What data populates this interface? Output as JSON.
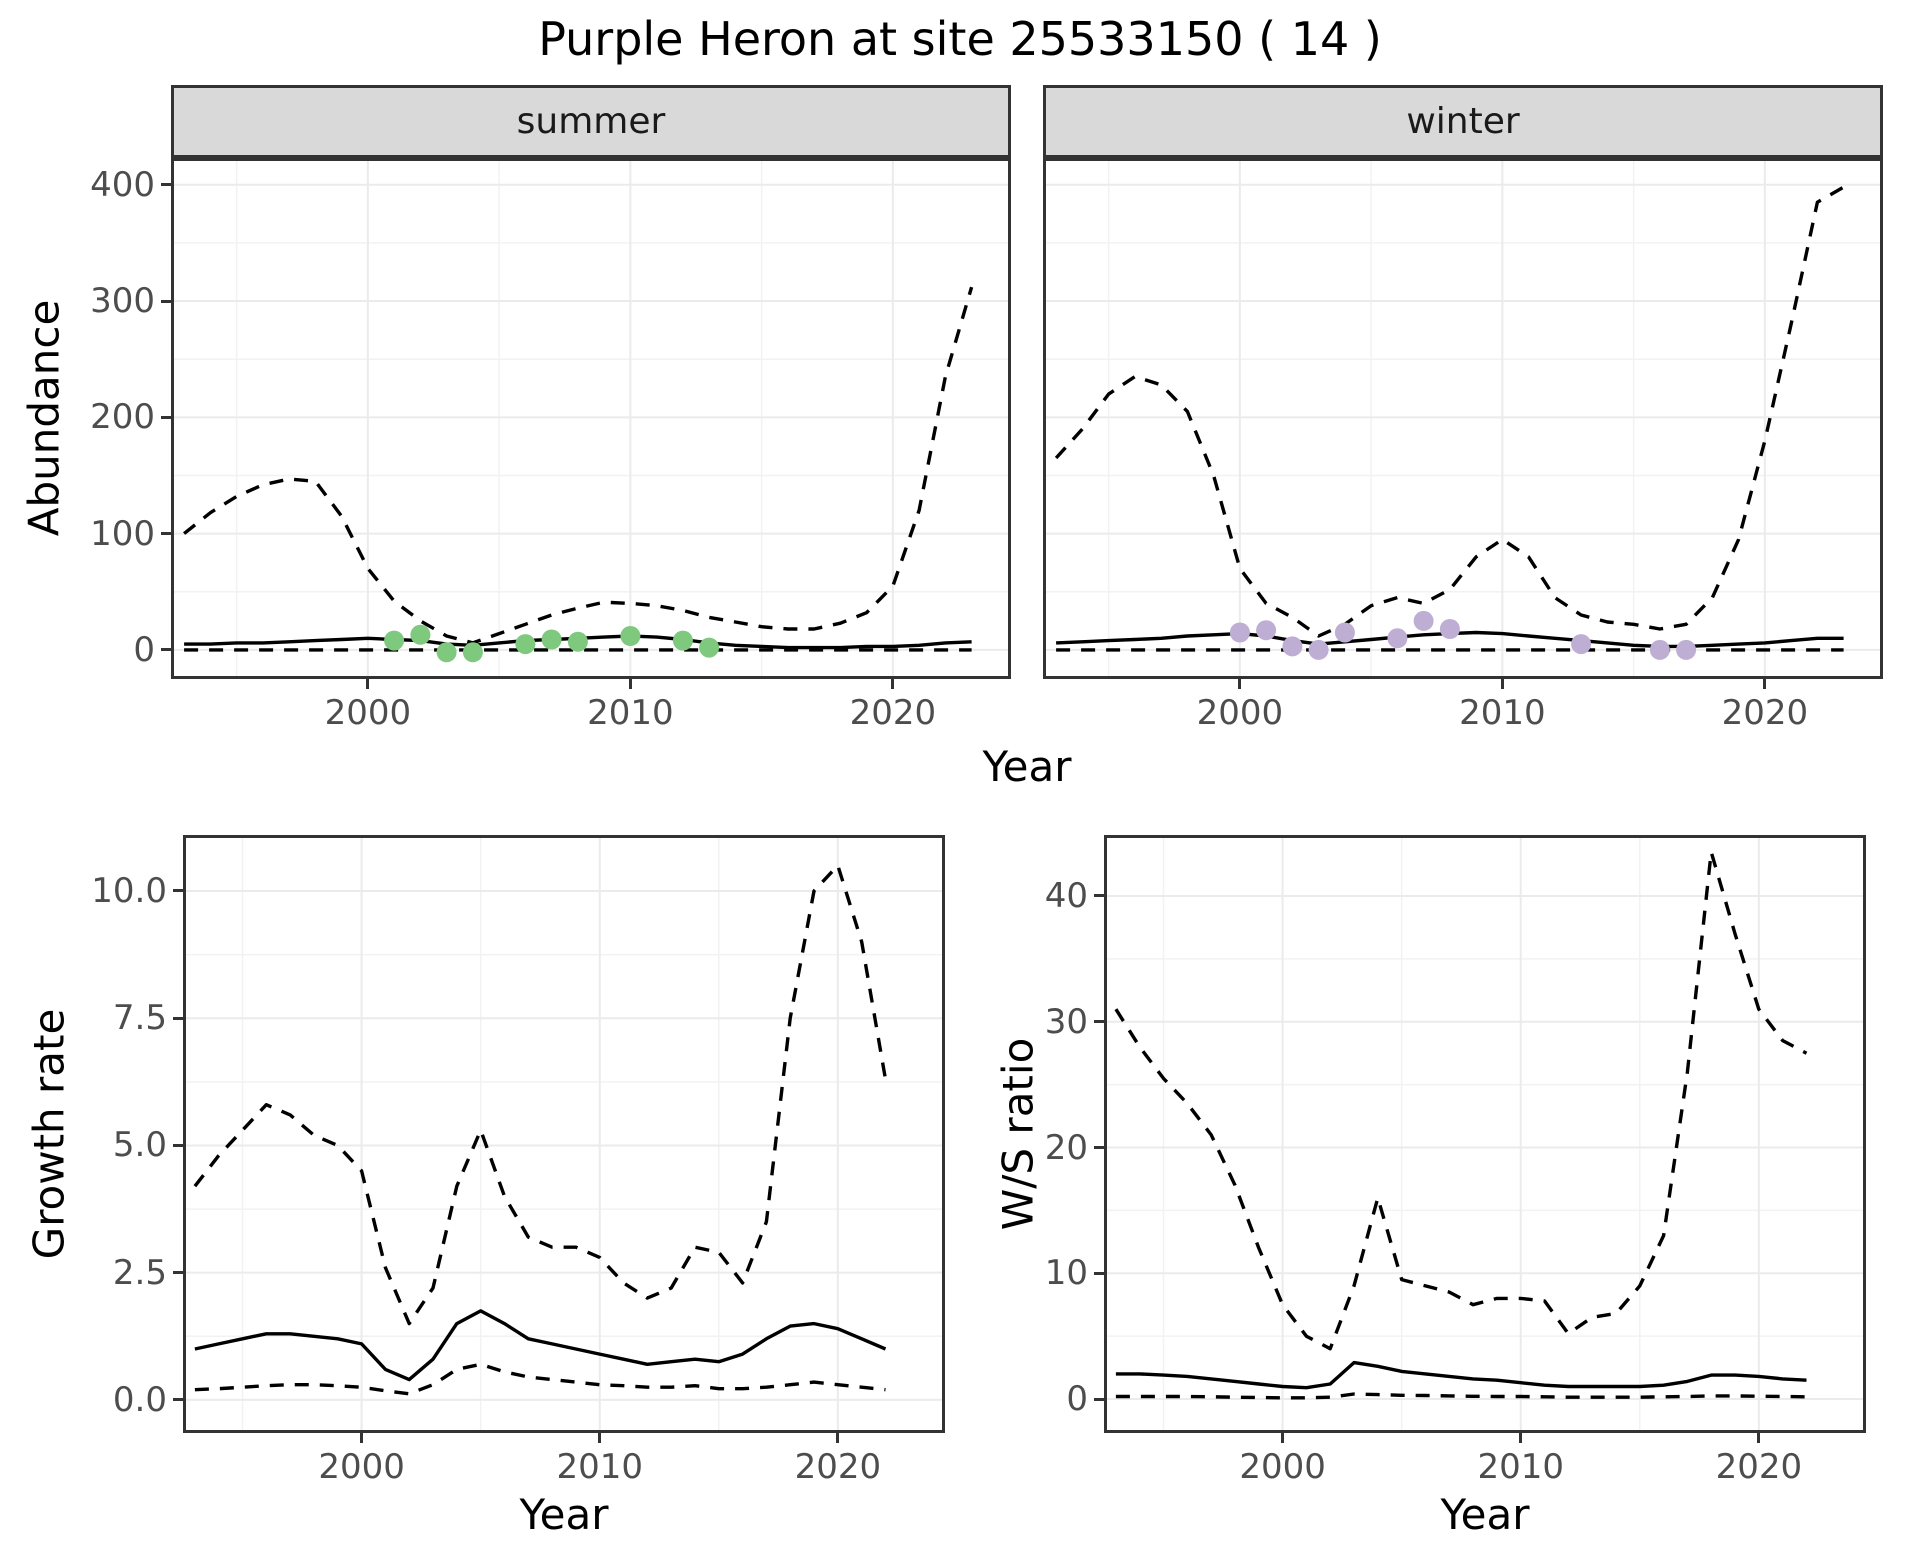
{
  "title": "Purple Heron at site 25533150 ( 14 )",
  "facets": {
    "summer": "summer",
    "winter": "winter"
  },
  "axis_labels": {
    "abundance": "Abundance",
    "year": "Year",
    "growth_rate": "Growth rate",
    "ws_ratio": "W/S ratio"
  },
  "colors": {
    "line": "#000000",
    "summer_points": "#7FC97F",
    "winter_points": "#BEAED4",
    "strip_bg": "#d9d9d9",
    "strip_text": "#1a1a1a",
    "panel_border": "#333333",
    "grid_major": "#ebebeb",
    "grid_minor": "#f2f2f2",
    "axis_text": "#4d4d4d",
    "background": "#ffffff"
  },
  "chart_data": [
    {
      "id": "abundance_summer",
      "type": "line",
      "facet": "summer",
      "title": "Purple Heron abundance (summer)",
      "xlabel": "Year",
      "ylabel": "Abundance",
      "xlim": [
        1992.5,
        2024.5
      ],
      "ylim": [
        -25,
        423
      ],
      "xticks": [
        2000,
        2010,
        2020
      ],
      "xtick_labels": [
        "2000",
        "2010",
        "2020"
      ],
      "xminor": [
        1995,
        2005,
        2015
      ],
      "yticks": [
        0,
        100,
        200,
        300,
        400
      ],
      "ytick_labels": [
        "0",
        "100",
        "200",
        "300",
        "400"
      ],
      "yminor": [
        50,
        150,
        250,
        350
      ],
      "x": [
        1993,
        1994,
        1995,
        1996,
        1997,
        1998,
        1999,
        2000,
        2001,
        2002,
        2003,
        2004,
        2005,
        2006,
        2007,
        2008,
        2009,
        2010,
        2011,
        2012,
        2013,
        2014,
        2015,
        2016,
        2017,
        2018,
        2019,
        2020,
        2021,
        2022,
        2023
      ],
      "series": [
        {
          "name": "upper_ci",
          "style": "dashed",
          "values": [
            100,
            118,
            132,
            142,
            147,
            145,
            115,
            70,
            42,
            25,
            12,
            6,
            14,
            22,
            30,
            36,
            41,
            40,
            38,
            34,
            28,
            24,
            20,
            18,
            18,
            23,
            32,
            55,
            120,
            235,
            312
          ]
        },
        {
          "name": "lower_ci",
          "style": "dashed",
          "values": [
            0,
            0,
            0,
            0,
            0,
            0,
            0,
            0,
            0,
            0,
            0,
            0,
            0,
            0,
            0,
            0,
            0,
            0,
            0,
            0,
            0,
            0,
            0,
            0,
            0,
            0,
            0,
            0,
            0,
            0,
            0
          ]
        },
        {
          "name": "mean",
          "style": "solid",
          "values": [
            5,
            5,
            6,
            6,
            7,
            8,
            9,
            10,
            9,
            8,
            5,
            4,
            6,
            8,
            9,
            10,
            11,
            12,
            11,
            9,
            6,
            4,
            3,
            2,
            2,
            2,
            3,
            3,
            4,
            6,
            7
          ]
        }
      ],
      "points": {
        "name": "observed_counts_summer",
        "color": "#7FC97F",
        "data": [
          [
            2001,
            8
          ],
          [
            2002,
            13
          ],
          [
            2003,
            -2
          ],
          [
            2004,
            -2
          ],
          [
            2006,
            5
          ],
          [
            2007,
            9
          ],
          [
            2008,
            7
          ],
          [
            2010,
            12
          ],
          [
            2012,
            8
          ],
          [
            2013,
            2
          ]
        ]
      }
    },
    {
      "id": "abundance_winter",
      "type": "line",
      "facet": "winter",
      "title": "Purple Heron abundance (winter)",
      "xlabel": "Year",
      "ylabel": "Abundance",
      "xlim": [
        1992.5,
        2024.5
      ],
      "ylim": [
        -25,
        423
      ],
      "xticks": [
        2000,
        2010,
        2020
      ],
      "xtick_labels": [
        "2000",
        "2010",
        "2020"
      ],
      "xminor": [
        1995,
        2005,
        2015
      ],
      "yticks": [
        0,
        100,
        200,
        300,
        400
      ],
      "ytick_labels": [
        "0",
        "100",
        "200",
        "300",
        "400"
      ],
      "yminor": [
        50,
        150,
        250,
        350
      ],
      "x": [
        1993,
        1994,
        1995,
        1996,
        1997,
        1998,
        1999,
        2000,
        2001,
        2002,
        2003,
        2004,
        2005,
        2006,
        2007,
        2008,
        2009,
        2010,
        2011,
        2012,
        2013,
        2014,
        2015,
        2016,
        2017,
        2018,
        2019,
        2020,
        2021,
        2022,
        2023
      ],
      "series": [
        {
          "name": "upper_ci",
          "style": "dashed",
          "values": [
            165,
            190,
            220,
            235,
            228,
            205,
            150,
            70,
            40,
            28,
            12,
            22,
            38,
            45,
            40,
            52,
            80,
            95,
            80,
            45,
            30,
            24,
            22,
            18,
            22,
            45,
            95,
            180,
            280,
            385,
            398
          ]
        },
        {
          "name": "lower_ci",
          "style": "dashed",
          "values": [
            0,
            0,
            0,
            0,
            0,
            0,
            0,
            0,
            0,
            0,
            0,
            0,
            0,
            0,
            0,
            0,
            0,
            0,
            0,
            0,
            0,
            0,
            0,
            0,
            0,
            0,
            0,
            0,
            0,
            0,
            0
          ]
        },
        {
          "name": "mean",
          "style": "solid",
          "values": [
            6,
            7,
            8,
            9,
            10,
            12,
            13,
            14,
            12,
            8,
            5,
            7,
            9,
            11,
            13,
            14,
            15,
            14,
            12,
            10,
            8,
            6,
            4,
            3,
            3,
            4,
            5,
            6,
            8,
            10,
            10
          ]
        }
      ],
      "points": {
        "name": "observed_counts_winter",
        "color": "#BEAED4",
        "data": [
          [
            2000,
            15
          ],
          [
            2001,
            17
          ],
          [
            2002,
            3
          ],
          [
            2003,
            0
          ],
          [
            2004,
            15
          ],
          [
            2006,
            10
          ],
          [
            2007,
            25
          ],
          [
            2008,
            18
          ],
          [
            2013,
            5
          ],
          [
            2016,
            0
          ],
          [
            2017,
            0
          ]
        ]
      }
    },
    {
      "id": "growth_rate",
      "type": "line",
      "facet": null,
      "title": "Growth rate over time",
      "xlabel": "Year",
      "ylabel": "Growth rate",
      "xlim": [
        1992.5,
        2024.5
      ],
      "ylim": [
        -0.65,
        11.1
      ],
      "xticks": [
        2000,
        2010,
        2020
      ],
      "xtick_labels": [
        "2000",
        "2010",
        "2020"
      ],
      "xminor": [
        1995,
        2005,
        2015
      ],
      "yticks": [
        0,
        2.5,
        5,
        7.5,
        10
      ],
      "ytick_labels": [
        "0.0",
        "2.5",
        "5.0",
        "7.5",
        "10.0"
      ],
      "yminor": [
        1.25,
        3.75,
        6.25,
        8.75
      ],
      "x": [
        1993,
        1994,
        1995,
        1996,
        1997,
        1998,
        1999,
        2000,
        2001,
        2002,
        2003,
        2004,
        2005,
        2006,
        2007,
        2008,
        2009,
        2010,
        2011,
        2012,
        2013,
        2014,
        2015,
        2016,
        2017,
        2018,
        2019,
        2020,
        2021,
        2022
      ],
      "series": [
        {
          "name": "upper_ci",
          "style": "dashed",
          "values": [
            4.2,
            4.8,
            5.3,
            5.8,
            5.6,
            5.2,
            5.0,
            4.5,
            2.6,
            1.5,
            2.2,
            4.2,
            5.3,
            4.0,
            3.2,
            3.0,
            3.0,
            2.8,
            2.3,
            2.0,
            2.2,
            3.0,
            2.9,
            2.3,
            3.5,
            7.5,
            10.0,
            10.5,
            9.0,
            6.3
          ]
        },
        {
          "name": "lower_ci",
          "style": "dashed",
          "values": [
            0.2,
            0.22,
            0.25,
            0.28,
            0.3,
            0.3,
            0.28,
            0.25,
            0.18,
            0.12,
            0.3,
            0.6,
            0.7,
            0.55,
            0.45,
            0.4,
            0.35,
            0.3,
            0.28,
            0.25,
            0.25,
            0.28,
            0.22,
            0.22,
            0.25,
            0.3,
            0.35,
            0.3,
            0.25,
            0.2
          ]
        },
        {
          "name": "mean",
          "style": "solid",
          "values": [
            1.0,
            1.1,
            1.2,
            1.3,
            1.3,
            1.25,
            1.2,
            1.1,
            0.6,
            0.4,
            0.8,
            1.5,
            1.75,
            1.5,
            1.2,
            1.1,
            1.0,
            0.9,
            0.8,
            0.7,
            0.75,
            0.8,
            0.75,
            0.9,
            1.2,
            1.45,
            1.5,
            1.4,
            1.2,
            1.0
          ]
        }
      ]
    },
    {
      "id": "ws_ratio",
      "type": "line",
      "facet": null,
      "title": "Winter/Summer ratio over time",
      "xlabel": "Year",
      "ylabel": "W/S ratio",
      "xlim": [
        1992.5,
        2024.5
      ],
      "ylim": [
        -2.7,
        44.85
      ],
      "xticks": [
        2000,
        2010,
        2020
      ],
      "xtick_labels": [
        "2000",
        "2010",
        "2020"
      ],
      "xminor": [
        1995,
        2005,
        2015
      ],
      "yticks": [
        0,
        10,
        20,
        30,
        40
      ],
      "ytick_labels": [
        "0",
        "10",
        "20",
        "30",
        "40"
      ],
      "yminor": [
        5,
        15,
        25,
        35
      ],
      "x": [
        1993,
        1994,
        1995,
        1996,
        1997,
        1998,
        1999,
        2000,
        2001,
        2002,
        2003,
        2004,
        2005,
        2006,
        2007,
        2008,
        2009,
        2010,
        2011,
        2012,
        2013,
        2014,
        2015,
        2016,
        2017,
        2018,
        2019,
        2020,
        2021,
        2022
      ],
      "series": [
        {
          "name": "upper_ci",
          "style": "dashed",
          "values": [
            31,
            28,
            25.5,
            23.5,
            21,
            17,
            12,
            7.5,
            5,
            4,
            9,
            16,
            9.5,
            9,
            8.5,
            7.5,
            8,
            8,
            7.8,
            5.2,
            6.5,
            6.8,
            9,
            13,
            26,
            43.5,
            37,
            31,
            28.5,
            27.5
          ]
        },
        {
          "name": "lower_ci",
          "style": "dashed",
          "values": [
            0.2,
            0.2,
            0.2,
            0.2,
            0.18,
            0.15,
            0.12,
            0.1,
            0.1,
            0.15,
            0.4,
            0.35,
            0.3,
            0.28,
            0.25,
            0.22,
            0.2,
            0.2,
            0.18,
            0.15,
            0.15,
            0.15,
            0.15,
            0.18,
            0.2,
            0.25,
            0.25,
            0.22,
            0.2,
            0.18
          ]
        },
        {
          "name": "mean",
          "style": "solid",
          "values": [
            2.0,
            2.0,
            1.9,
            1.8,
            1.6,
            1.4,
            1.2,
            1.0,
            0.9,
            1.2,
            2.9,
            2.6,
            2.2,
            2.0,
            1.8,
            1.6,
            1.5,
            1.3,
            1.1,
            1.0,
            1.0,
            1.0,
            1.0,
            1.1,
            1.4,
            1.9,
            1.9,
            1.8,
            1.6,
            1.5
          ]
        }
      ]
    }
  ]
}
